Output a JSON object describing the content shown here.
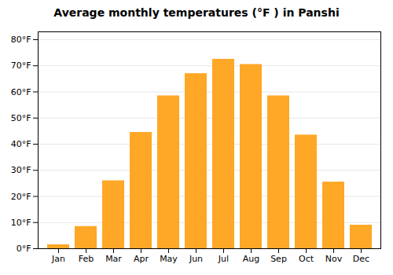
{
  "chart_data": {
    "type": "bar",
    "title": "Average monthly temperatures (°F ) in Panshi",
    "categories": [
      "Jan",
      "Feb",
      "Mar",
      "Apr",
      "May",
      "Jun",
      "Jul",
      "Aug",
      "Sep",
      "Oct",
      "Nov",
      "Dec"
    ],
    "values": [
      1.5,
      8.5,
      26,
      44.5,
      58.5,
      67,
      72.5,
      70.5,
      58.5,
      43.5,
      25.5,
      9
    ],
    "color": "#FFA726",
    "ylim": [
      0,
      83
    ],
    "yticks": [
      {
        "value": 0,
        "label": "0°F"
      },
      {
        "value": 10,
        "label": "10°F"
      },
      {
        "value": 20,
        "label": "20°F"
      },
      {
        "value": 30,
        "label": "30°F"
      },
      {
        "value": 40,
        "label": "40°F"
      },
      {
        "value": 50,
        "label": "50°F"
      },
      {
        "value": 60,
        "label": "60°F"
      },
      {
        "value": 70,
        "label": "70°F"
      },
      {
        "value": 80,
        "label": "80°F"
      }
    ],
    "grid": true
  }
}
